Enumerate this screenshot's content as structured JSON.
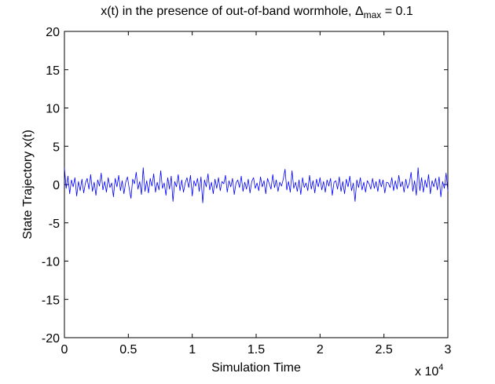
{
  "chart_data": {
    "type": "line",
    "title": "x(t) in the presence of out-of-band wormhole, Δ",
    "title_subscript": "max",
    "title_suffix": " = 0.1",
    "xlabel": "Simulation Time",
    "ylabel": "State Trajectory x(t)",
    "x_exponent_base": "x 10",
    "x_exponent_power": "4",
    "xlim": [
      0,
      3
    ],
    "ylim": [
      -20,
      20
    ],
    "xticks": [
      0,
      0.5,
      1,
      1.5,
      2,
      2.5,
      3
    ],
    "xtick_labels": [
      "0",
      "0.5",
      "1",
      "1.5",
      "2",
      "2.5",
      "3"
    ],
    "yticks": [
      -20,
      -15,
      -10,
      -5,
      0,
      5,
      10,
      15,
      20
    ],
    "ytick_labels": [
      "-20",
      "-15",
      "-10",
      "-5",
      "0",
      "5",
      "10",
      "15",
      "20"
    ],
    "grid": false,
    "line_color": "#0000ff",
    "series": [
      {
        "values": [
          2.2,
          -0.5,
          1.1,
          -1.2,
          0.6,
          -0.3,
          0.9,
          -1.5,
          0.4,
          -0.8,
          0.7,
          -1.1,
          0.2,
          0.8,
          -0.6,
          1.3,
          -0.9,
          0.3,
          -1.4,
          0.6,
          -0.2,
          1.5,
          -0.7,
          0.4,
          -1.0,
          0.9,
          -0.4,
          0.2,
          -1.6,
          0.8,
          -0.3,
          1.2,
          -0.8,
          0.5,
          -1.2,
          0.3,
          1.0,
          -0.5,
          -1.8,
          0.7,
          0.1,
          1.6,
          -0.6,
          0.4,
          -1.3,
          2.2,
          -0.9,
          0.5,
          -1.1,
          0.8,
          -0.2,
          1.4,
          -1.0,
          0.3,
          -0.7,
          1.8,
          -0.5,
          0.2,
          -1.4,
          0.9,
          -0.6,
          1.1,
          -2.2,
          0.4,
          -0.3,
          1.3,
          -0.8,
          0.6,
          -1.0,
          0.2,
          0.9,
          -0.4,
          1.2,
          -1.5,
          0.5,
          -0.2,
          0.8,
          -0.9,
          1.0,
          -2.4,
          0.6,
          -0.3,
          1.4,
          -0.7,
          0.3,
          -1.2,
          0.7,
          -0.5,
          0.9,
          -0.8,
          0.4,
          0.1,
          1.2,
          -1.0,
          0.5,
          -0.3,
          0.8,
          -1.3,
          0.2,
          0.6,
          -0.4,
          1.1,
          -0.9,
          0.3,
          -0.6,
          0.7,
          -1.1,
          0.4,
          0.9,
          -0.5,
          0.2,
          -0.8,
          1.0,
          -0.3,
          0.5,
          -1.2,
          0.8,
          0.1,
          -0.6,
          1.3,
          -0.4,
          0.6,
          -0.9,
          0.3,
          -0.2,
          0.7,
          2.0,
          -0.7,
          0.4,
          -1.0,
          1.8,
          -0.5,
          0.3,
          -0.9,
          0.6,
          -1.3,
          0.9,
          -0.4,
          0.2,
          -0.8,
          1.2,
          -0.6,
          0.5,
          -1.1,
          0.7,
          -0.3,
          0.9,
          -0.7,
          0.4,
          -1.0,
          0.6,
          -0.2,
          0.8,
          -1.4,
          0.3,
          0.5,
          -0.6,
          1.0,
          -0.9,
          0.4,
          -1.2,
          0.7,
          -0.3,
          1.1,
          -0.8,
          0.2,
          -2.2,
          0.6,
          -0.4,
          0.9,
          -0.7,
          0.3,
          -1.0,
          0.5,
          0.1,
          -0.6,
          0.8,
          -0.5,
          0.4,
          -0.9,
          0.7,
          -0.3,
          0.6,
          -1.1,
          0.3,
          0.2,
          -0.4,
          0.9,
          -0.8,
          0.5,
          -0.6,
          1.2,
          -0.3,
          0.4,
          -1.0,
          0.7,
          -0.5,
          0.2,
          1.6,
          -0.9,
          0.5,
          -1.4,
          2.2,
          -0.8,
          0.9,
          -1.0,
          0.6,
          -0.4,
          1.3,
          -1.2,
          0.5,
          -0.3,
          0.8,
          -0.7,
          1.0,
          -1.6,
          0.4,
          -0.5,
          1.5,
          -0.9
        ]
      }
    ]
  }
}
